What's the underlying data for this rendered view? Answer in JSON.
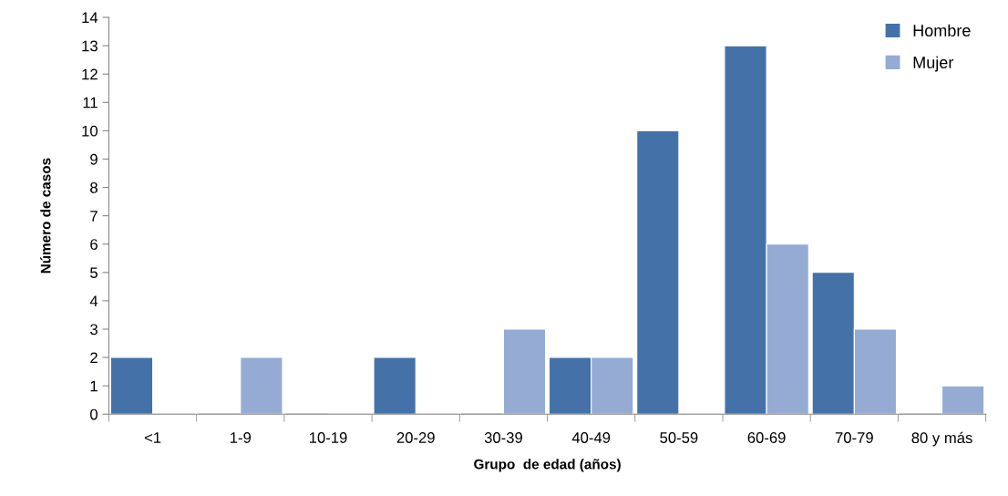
{
  "chart_data": {
    "type": "bar",
    "xlabel": "Grupo  de edad (años)",
    "ylabel": "Número de casos",
    "categories": [
      "<1",
      "1-9",
      "10-19",
      "20-29",
      "30-39",
      "40-49",
      "50-59",
      "60-69",
      "70-79",
      "80 y más"
    ],
    "series": [
      {
        "name": "Hombre",
        "color": "#4472a8",
        "values": [
          2,
          0,
          0,
          2,
          0,
          2,
          10,
          13,
          5,
          0
        ]
      },
      {
        "name": "Mujer",
        "color": "#95abd3",
        "values": [
          0,
          2,
          0,
          0,
          3,
          2,
          0,
          6,
          3,
          1
        ]
      }
    ],
    "ylim": [
      0,
      14
    ],
    "yticks": [
      0,
      1,
      2,
      3,
      4,
      5,
      6,
      7,
      8,
      9,
      10,
      11,
      12,
      13,
      14
    ],
    "grid": false,
    "legend": "top right"
  }
}
